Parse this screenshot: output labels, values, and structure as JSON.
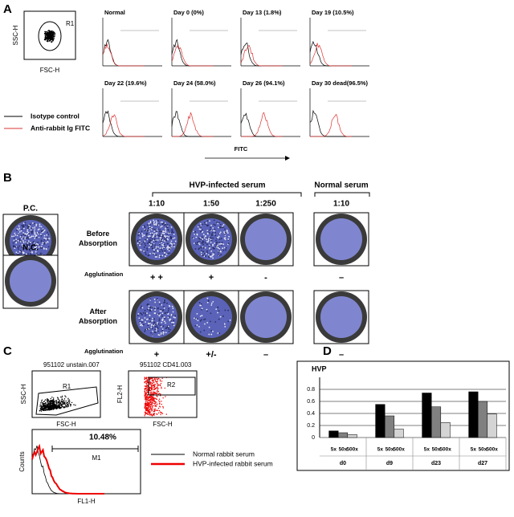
{
  "panel_a": {
    "label": "A",
    "scatter": {
      "y_label": "SSC-H",
      "x_label": "FSC-H",
      "region": "R1"
    },
    "legend": [
      "Isotype control",
      "Anti-rabbit Ig FITC"
    ],
    "histograms": [
      "Normal",
      "Day 0 (0%)",
      "Day 13 (1.8%)",
      "Day 19 (10.5%)",
      "Day 22 (19.6%)",
      "Day 24 (58.0%)",
      "Day 26 (94.1%)",
      "Day 30 dead(96.5%)"
    ],
    "x_label": "FITC"
  },
  "panel_b": {
    "label": "B",
    "positive_control": "P.C.",
    "negative_control": "N.C.",
    "group_hvp": "HVP-infected serum",
    "group_normal": "Normal serum",
    "dilutions": [
      "1:10",
      "1:50",
      "1:250",
      "1:10"
    ],
    "rows": [
      {
        "label": "Before Absorption",
        "agglutination_label": "Agglutination",
        "results": [
          "+ +",
          "+",
          "-",
          "–"
        ]
      },
      {
        "label": "After Absorption",
        "agglutination_label": "Agglutination",
        "results": [
          "+",
          "+/-",
          "–",
          "–"
        ]
      }
    ]
  },
  "panel_c": {
    "label": "C",
    "plots": [
      {
        "title": "951102 unstain.007",
        "y_label": "SSC-H",
        "x_label": "FSC-H",
        "region": "R1"
      },
      {
        "title": "951102 CD41.003",
        "y_label": "FL2-H",
        "x_label": "FSC-H",
        "region": "R2"
      }
    ],
    "histogram": {
      "y_label": "Counts",
      "x_label": "FL1-H",
      "percent": "10.48%",
      "marker": "M1"
    },
    "legend": [
      "Normal rabbit serum",
      "HVP-infected rabbit serum"
    ]
  },
  "panel_d": {
    "label": "D",
    "chart_data": {
      "type": "bar",
      "title": "HVP",
      "categories": [
        "d0",
        "d9",
        "d23",
        "d27"
      ],
      "series": [
        {
          "name": "5x",
          "color": "#000000",
          "values": [
            0.11,
            0.55,
            0.74,
            0.76
          ]
        },
        {
          "name": "50x",
          "color": "#808080",
          "values": [
            0.08,
            0.36,
            0.51,
            0.6
          ]
        },
        {
          "name": "500x",
          "color": "#d4d4d4",
          "values": [
            0.05,
            0.14,
            0.25,
            0.39
          ]
        }
      ],
      "ylim": [
        0,
        1
      ],
      "yticks": [
        0,
        0.2,
        0.4,
        0.6,
        0.8
      ]
    }
  }
}
